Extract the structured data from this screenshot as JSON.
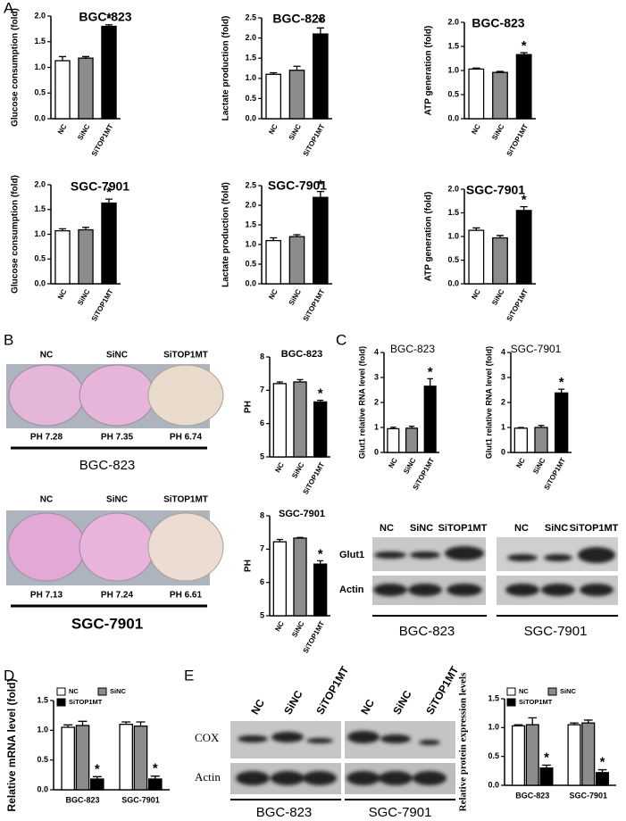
{
  "chart_data": [
    {
      "type": "bar",
      "title": "BGC-823",
      "ylabel": "Glucose consumption (fold)",
      "categories": [
        "NC",
        "SiNC",
        "SiTOP1MT"
      ],
      "values": [
        1.13,
        1.18,
        1.8
      ],
      "errors": [
        0.08,
        0.03,
        0.03
      ],
      "colors": [
        "#ffffff",
        "#8c8c8c",
        "#000000"
      ],
      "ylim": [
        0,
        2.0
      ],
      "yticks": [
        {
          "value": 0,
          "label": "0.0"
        },
        0.5,
        {
          "value": 1,
          "label": "1.0"
        },
        1.5,
        {
          "value": 2,
          "label": "2.0"
        }
      ],
      "annotations": [
        {
          "at": 2,
          "text": "*"
        }
      ]
    },
    {
      "type": "bar",
      "title": "BGC-823",
      "ylabel": "Lactate production (fold)",
      "categories": [
        "NC",
        "SiNC",
        "SiTOP1MT"
      ],
      "values": [
        1.1,
        1.2,
        2.1
      ],
      "errors": [
        0.04,
        0.1,
        0.15
      ],
      "colors": [
        "#ffffff",
        "#8c8c8c",
        "#000000"
      ],
      "ylim": [
        0,
        2.5
      ],
      "yticks": [
        {
          "value": 0,
          "label": "0.0"
        },
        0.5,
        {
          "value": 1,
          "label": "1.0"
        },
        1.5,
        {
          "value": 2,
          "label": "2.0"
        },
        2.5
      ],
      "annotations": [
        {
          "at": 2,
          "text": "*"
        }
      ]
    },
    {
      "type": "bar",
      "title": "BGC-823",
      "ylabel": "ATP generation (fold)",
      "categories": [
        "NC",
        "SiNC",
        "SiTOP1MT"
      ],
      "values": [
        1.03,
        0.96,
        1.33
      ],
      "errors": [
        0.02,
        0.02,
        0.04
      ],
      "colors": [
        "#ffffff",
        "#8c8c8c",
        "#000000"
      ],
      "ylim": [
        0,
        2.0
      ],
      "yticks": [
        {
          "value": 0,
          "label": "0.0"
        },
        0.5,
        {
          "value": 1,
          "label": "1.0"
        },
        1.5,
        {
          "value": 2,
          "label": "2.0"
        }
      ],
      "annotations": [
        {
          "at": 2,
          "text": "*"
        }
      ]
    },
    {
      "type": "bar",
      "title": "SGC-7901",
      "ylabel": "Glucose consumption (fold)",
      "categories": [
        "NC",
        "SiNC",
        "SiTOP1MT"
      ],
      "values": [
        1.07,
        1.09,
        1.63
      ],
      "errors": [
        0.04,
        0.05,
        0.08
      ],
      "colors": [
        "#ffffff",
        "#8c8c8c",
        "#000000"
      ],
      "ylim": [
        0,
        2.0
      ],
      "yticks": [
        {
          "value": 0,
          "label": "0.0"
        },
        0.5,
        {
          "value": 1,
          "label": "1.0"
        },
        1.5,
        {
          "value": 2,
          "label": "2.0"
        }
      ],
      "annotations": [
        {
          "at": 2,
          "text": "*"
        }
      ]
    },
    {
      "type": "bar",
      "title": "SGC-7901",
      "ylabel": "Lactate production (fold)",
      "categories": [
        "NC",
        "SiNC",
        "SiTOP1MT"
      ],
      "values": [
        1.1,
        1.2,
        2.2
      ],
      "errors": [
        0.07,
        0.05,
        0.15
      ],
      "colors": [
        "#ffffff",
        "#8c8c8c",
        "#000000"
      ],
      "ylim": [
        0,
        2.5
      ],
      "yticks": [
        {
          "value": 0,
          "label": "0.0"
        },
        0.5,
        {
          "value": 1,
          "label": "1.0"
        },
        1.5,
        {
          "value": 2,
          "label": "2.0"
        },
        2.5
      ],
      "annotations": [
        {
          "at": 2,
          "text": "*"
        }
      ]
    },
    {
      "type": "bar",
      "title": "SGC-7901",
      "ylabel": "ATP generation (fold)",
      "categories": [
        "NC",
        "SiNC",
        "SiTOP1MT"
      ],
      "values": [
        1.13,
        0.97,
        1.55
      ],
      "errors": [
        0.05,
        0.05,
        0.08
      ],
      "colors": [
        "#ffffff",
        "#8c8c8c",
        "#000000"
      ],
      "ylim": [
        0,
        2.0
      ],
      "yticks": [
        {
          "value": 0,
          "label": "0.0"
        },
        0.5,
        {
          "value": 1,
          "label": "1.0"
        },
        1.5,
        {
          "value": 2,
          "label": "2.0"
        }
      ],
      "annotations": [
        {
          "at": 2,
          "text": "*"
        }
      ]
    },
    {
      "type": "bar",
      "title": "BGC-823",
      "ylabel": "PH",
      "categories": [
        "NC",
        "SiNC",
        "SiTOP1MT"
      ],
      "values": [
        7.2,
        7.25,
        6.65
      ],
      "errors": [
        0.05,
        0.07,
        0.05
      ],
      "colors": [
        "#ffffff",
        "#8c8c8c",
        "#000000"
      ],
      "ylim": [
        5,
        8
      ],
      "yticks": [
        5,
        6,
        7,
        8
      ],
      "annotations": [
        {
          "at": 2,
          "text": "*"
        }
      ]
    },
    {
      "type": "bar",
      "title": "SGC-7901",
      "ylabel": "PH",
      "categories": [
        "NC",
        "SiNC",
        "SiTOP1MT"
      ],
      "values": [
        7.22,
        7.33,
        6.55
      ],
      "errors": [
        0.07,
        0.02,
        0.1
      ],
      "colors": [
        "#ffffff",
        "#8c8c8c",
        "#000000"
      ],
      "ylim": [
        5,
        8
      ],
      "yticks": [
        5,
        6,
        7,
        8
      ],
      "annotations": [
        {
          "at": 2,
          "text": "*"
        }
      ]
    },
    {
      "type": "bar",
      "title": "BGC-823",
      "ylabel": "Glut1 relative RNA level (fold)",
      "categories": [
        "NC",
        "SiNC",
        "SiTOP1MT"
      ],
      "values": [
        0.95,
        0.97,
        2.65
      ],
      "errors": [
        0.06,
        0.08,
        0.3
      ],
      "colors": [
        "#ffffff",
        "#8c8c8c",
        "#000000"
      ],
      "ylim": [
        0,
        4
      ],
      "yticks": [
        0,
        1,
        2,
        3,
        4
      ],
      "annotations": [
        {
          "at": 2,
          "text": "*"
        }
      ]
    },
    {
      "type": "bar",
      "title": "SGC-7901",
      "ylabel": "Glut1 relative RNA level (fold)",
      "categories": [
        "NC",
        "SiNC",
        "SiTOP1MT"
      ],
      "values": [
        0.97,
        1.0,
        2.38
      ],
      "errors": [
        0.03,
        0.08,
        0.15
      ],
      "colors": [
        "#ffffff",
        "#8c8c8c",
        "#000000"
      ],
      "ylim": [
        0,
        4
      ],
      "yticks": [
        0,
        1,
        2,
        3,
        4
      ],
      "annotations": [
        {
          "at": 2,
          "text": "*"
        }
      ]
    },
    {
      "type": "grouped_bar",
      "ylabel": "Relative mRNA level (fold)",
      "categories": [
        "BGC-823",
        "SGC-7901"
      ],
      "series": [
        {
          "name": "NC",
          "color": "#ffffff",
          "values": [
            1.05,
            1.1
          ],
          "errors": [
            0.04,
            0.04
          ]
        },
        {
          "name": "SiNC",
          "color": "#8c8c8c",
          "values": [
            1.08,
            1.07
          ],
          "errors": [
            0.07,
            0.07
          ]
        },
        {
          "name": "SiTOP1MT",
          "color": "#000000",
          "values": [
            0.18,
            0.18
          ],
          "errors": [
            0.04,
            0.05
          ]
        }
      ],
      "ylim": [
        0,
        1.5
      ],
      "yticks": [
        {
          "value": 0,
          "label": "0.0"
        },
        0.5,
        {
          "value": 1,
          "label": "1.0"
        },
        1.5
      ],
      "annotations": [
        {
          "series": 2,
          "at": 0,
          "text": "*"
        },
        {
          "series": 2,
          "at": 1,
          "text": "*"
        }
      ]
    },
    {
      "type": "grouped_bar",
      "ylabel": "Relative protein expression levels",
      "categories": [
        "BGC-823",
        "SGC-7901"
      ],
      "series": [
        {
          "name": "NC",
          "color": "#ffffff",
          "values": [
            1.03,
            1.05
          ],
          "errors": [
            0.02,
            0.03
          ]
        },
        {
          "name": "SiNC",
          "color": "#8c8c8c",
          "values": [
            1.05,
            1.08
          ],
          "errors": [
            0.12,
            0.05
          ]
        },
        {
          "name": "SiTOP1MT",
          "color": "#000000",
          "values": [
            0.3,
            0.22
          ],
          "errors": [
            0.05,
            0.05
          ]
        }
      ],
      "ylim": [
        0,
        1.5
      ],
      "yticks": [
        {
          "value": 0,
          "label": "0.0"
        },
        0.5,
        {
          "value": 1,
          "label": "1.0"
        },
        1.5
      ],
      "annotations": [
        {
          "series": 2,
          "at": 0,
          "text": "*"
        },
        {
          "series": 2,
          "at": 1,
          "text": "*"
        }
      ]
    }
  ],
  "panels": [
    "A",
    "B",
    "C",
    "D",
    "E"
  ],
  "dishes": [
    {
      "lanes": [
        "NC",
        "SiNC",
        "SiTOP1MT"
      ],
      "ph": [
        "PH  7.28",
        "PH 7.35",
        "PH 6.74"
      ],
      "cell": "BGC-823"
    },
    {
      "lanes": [
        "NC",
        "SiNC",
        "SiTOP1MT"
      ],
      "ph": [
        "PH  7.13",
        "PH 7.24",
        "PH 6.61"
      ],
      "cell": "SGC-7901"
    }
  ],
  "blot_c": {
    "lanes": [
      "NC",
      "SiNC",
      "SiTOP1MT",
      "NC",
      "SiNC",
      "SiTOP1MT"
    ],
    "rows": [
      "Glut1",
      "Actin"
    ],
    "cells": [
      "BGC-823",
      "SGC-7901"
    ]
  },
  "blot_e": {
    "lanes": [
      "NC",
      "SiNC",
      "SiTOP1MT",
      "NC",
      "SiNC",
      "SiTOP1MT"
    ],
    "rows": [
      "COX",
      "Actin"
    ],
    "cells": [
      "BGC-823",
      "SGC-7901"
    ]
  }
}
